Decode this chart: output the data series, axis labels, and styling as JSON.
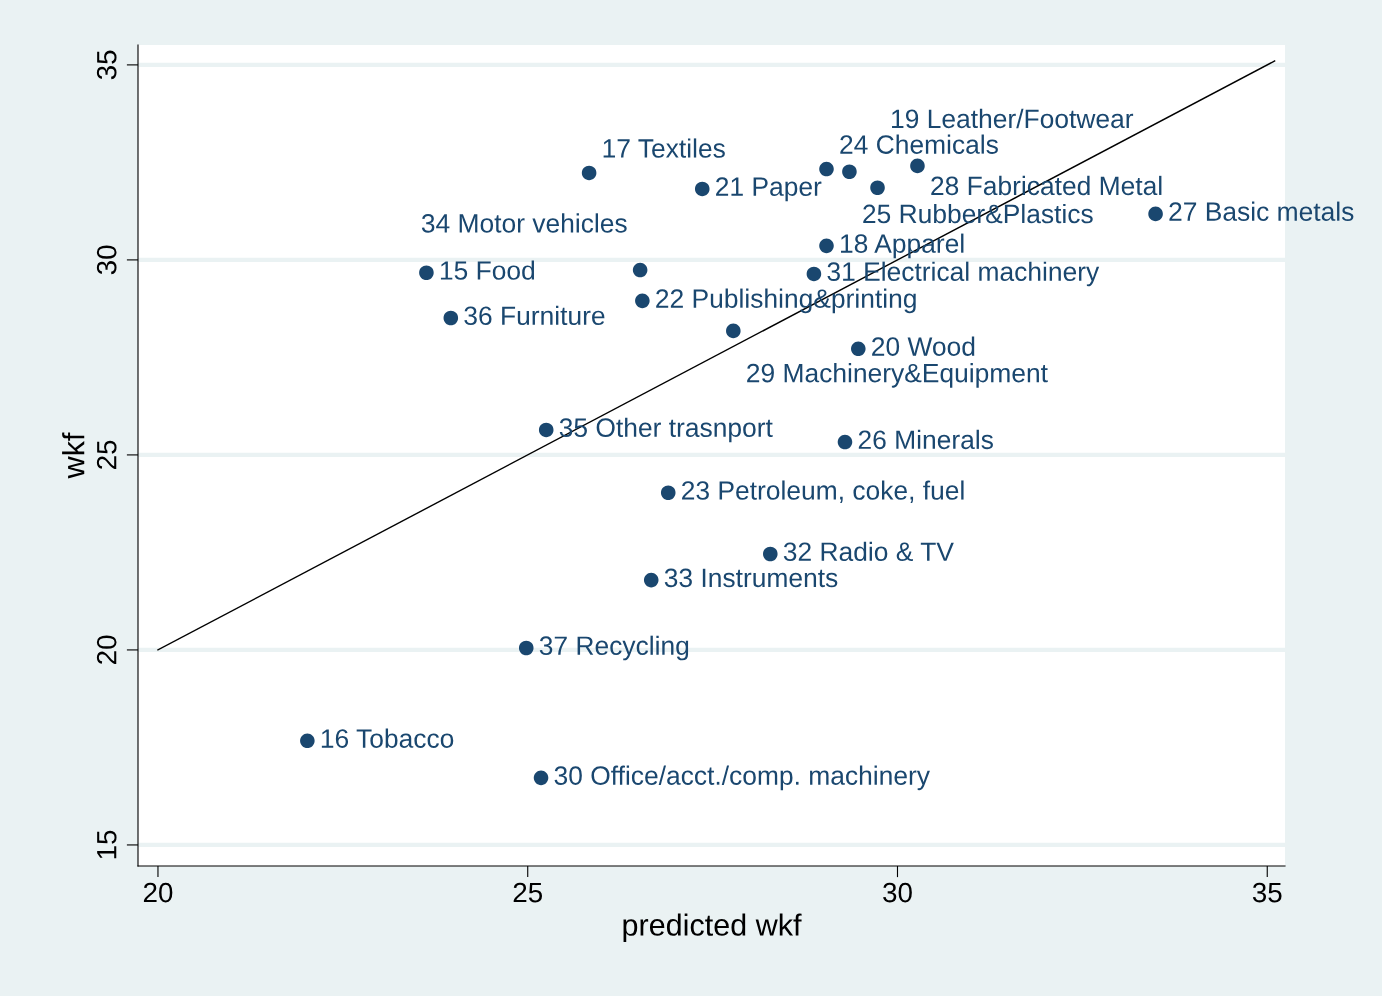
{
  "chart_data": {
    "type": "scatter",
    "xlabel": "predicted wkf",
    "ylabel": "wkf",
    "x": [
      25.83,
      27.36,
      29.04,
      29.35,
      30.27,
      29.73,
      33.49,
      29.04,
      23.63,
      26.52,
      28.87,
      26.55,
      23.96,
      27.78,
      29.47,
      25.25,
      29.29,
      26.9,
      28.28,
      26.67,
      24.98,
      22.02,
      25.18
    ],
    "series": [
      {
        "color": "#1a476f",
        "marker": "circle",
        "values": [
          32.23,
          31.82,
          32.33,
          32.26,
          32.41,
          31.85,
          31.18,
          30.36,
          29.67,
          29.74,
          29.64,
          28.95,
          28.51,
          28.18,
          27.72,
          25.64,
          25.33,
          24.03,
          22.46,
          21.79,
          20.05,
          17.67,
          16.72
        ]
      },
      {
        "type": "line",
        "color": "#000000",
        "marker": "none",
        "line_style": "solid",
        "x": [
          20,
          35.1
        ],
        "values": [
          20,
          35.1
        ]
      }
    ],
    "annotations": [
      {
        "text": "17 Textiles",
        "x": 25.83,
        "y": 32.23
      },
      {
        "text": "21 Paper",
        "x": 27.36,
        "y": 31.82
      },
      {
        "text": "24 Chemicals",
        "x": 29.04,
        "y": 32.33
      },
      {
        "text": "25 Rubber&Plastics",
        "x": 29.35,
        "y": 32.26
      },
      {
        "text": "28 Fabricated Metal",
        "x": 30.27,
        "y": 32.41
      },
      {
        "text": "19 Leather/Footwear",
        "x": 29.73,
        "y": 31.85
      },
      {
        "text": "27 Basic metals",
        "x": 33.49,
        "y": 31.18
      },
      {
        "text": "18 Apparel",
        "x": 29.04,
        "y": 30.36
      },
      {
        "text": "15 Food",
        "x": 23.63,
        "y": 29.67
      },
      {
        "text": "34 Motor vehicles",
        "x": 26.52,
        "y": 29.74
      },
      {
        "text": "31 Electrical machinery",
        "x": 28.87,
        "y": 29.64
      },
      {
        "text": "22 Publishing&printing",
        "x": 26.55,
        "y": 28.95
      },
      {
        "text": "36 Furniture",
        "x": 23.96,
        "y": 28.51
      },
      {
        "text": "29 Machinery&Equipment",
        "x": 27.78,
        "y": 28.18
      },
      {
        "text": "20 Wood",
        "x": 29.47,
        "y": 27.72
      },
      {
        "text": "35 Other trasnport",
        "x": 25.25,
        "y": 25.64
      },
      {
        "text": "26 Minerals",
        "x": 29.29,
        "y": 25.33
      },
      {
        "text": "23 Petroleum, coke, fuel",
        "x": 26.9,
        "y": 24.03
      },
      {
        "text": "32 Radio & TV",
        "x": 28.28,
        "y": 22.46
      },
      {
        "text": "33 Instruments",
        "x": 26.67,
        "y": 21.79
      },
      {
        "text": "37 Recycling",
        "x": 24.98,
        "y": 20.05
      },
      {
        "text": "16 Tobacco",
        "x": 22.02,
        "y": 17.67
      },
      {
        "text": "30 Office/acct./comp. machinery",
        "x": 25.18,
        "y": 16.72
      }
    ],
    "xlim": [
      19.73,
      35.24
    ],
    "ylim": [
      14.46,
      35.51
    ],
    "xticks": [
      20,
      25,
      30,
      35
    ],
    "yticks": [
      15,
      20,
      25,
      30,
      35
    ],
    "grid": "y",
    "legend": false
  }
}
